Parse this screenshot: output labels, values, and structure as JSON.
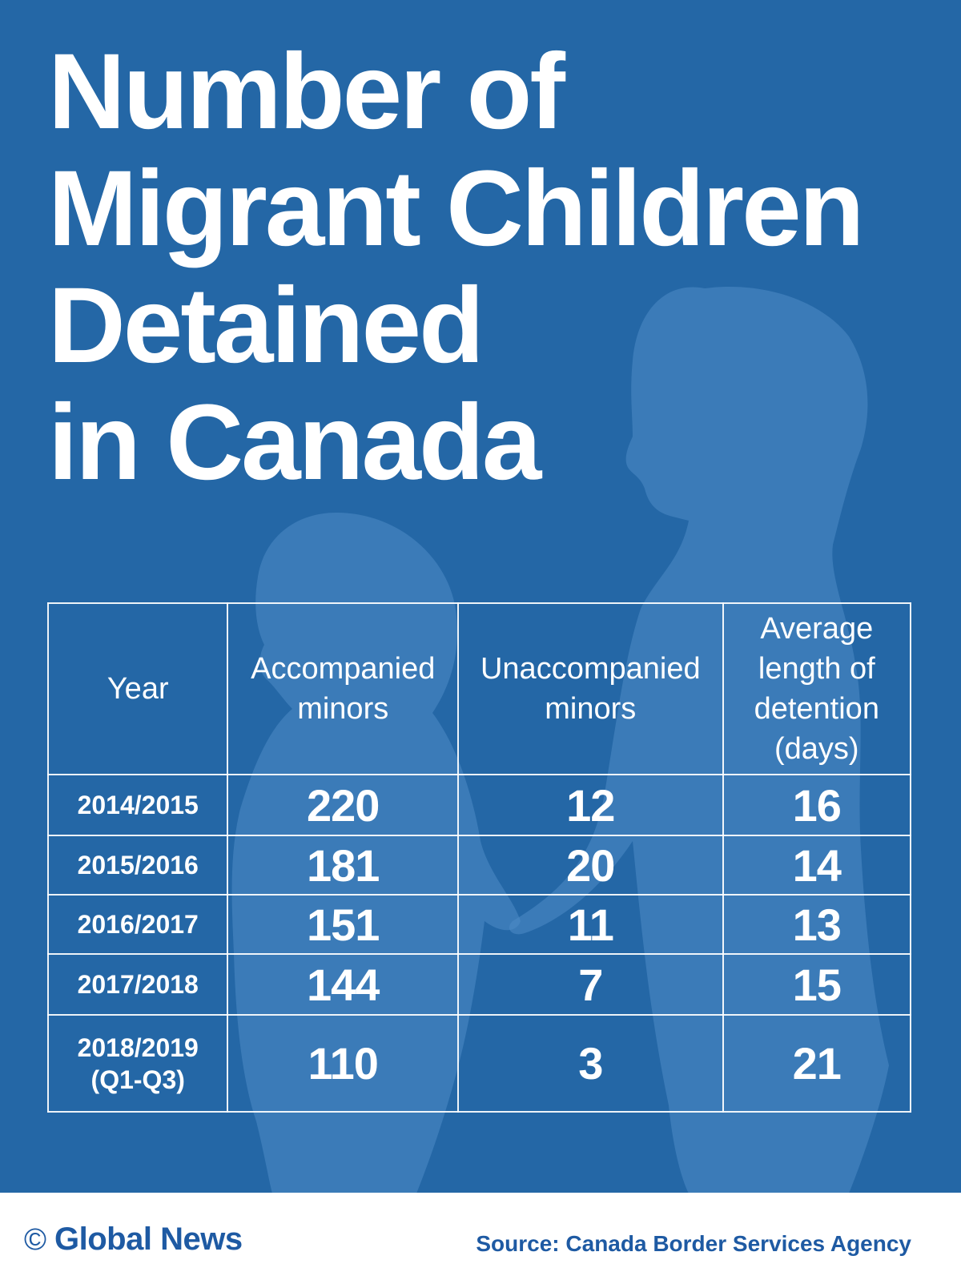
{
  "colors": {
    "background": "#2467a6",
    "silhouette": "#4f8dc7",
    "text": "#ffffff",
    "brand": "#1e5aa3",
    "footer": "#ffffff"
  },
  "chart_data": {
    "type": "table",
    "title_lines": [
      "Number of",
      "Migrant Children",
      "Detained",
      "in Canada"
    ],
    "columns": [
      [
        "Year"
      ],
      [
        "Accompanied",
        "minors"
      ],
      [
        "Unaccompanied",
        "minors"
      ],
      [
        "Average",
        "length of",
        "detention",
        "(days)"
      ]
    ],
    "rows": [
      {
        "year": [
          "2014/2015"
        ],
        "accompanied": "220",
        "unaccompanied": "12",
        "avg_days": "16"
      },
      {
        "year": [
          "2015/2016"
        ],
        "accompanied": "181",
        "unaccompanied": "20",
        "avg_days": "14"
      },
      {
        "year": [
          "2016/2017"
        ],
        "accompanied": "151",
        "unaccompanied": "11",
        "avg_days": "13"
      },
      {
        "year": [
          "2017/2018"
        ],
        "accompanied": "144",
        "unaccompanied": "7",
        "avg_days": "15"
      },
      {
        "year": [
          "2018/2019",
          "(Q1-Q3)"
        ],
        "accompanied": "110",
        "unaccompanied": "3",
        "avg_days": "21"
      }
    ]
  },
  "footer": {
    "copyright_symbol": "©",
    "brand": "Global News",
    "source": "Source: Canada Border Services Agency"
  },
  "icons": {
    "silhouette": "children-silhouette-icon"
  }
}
